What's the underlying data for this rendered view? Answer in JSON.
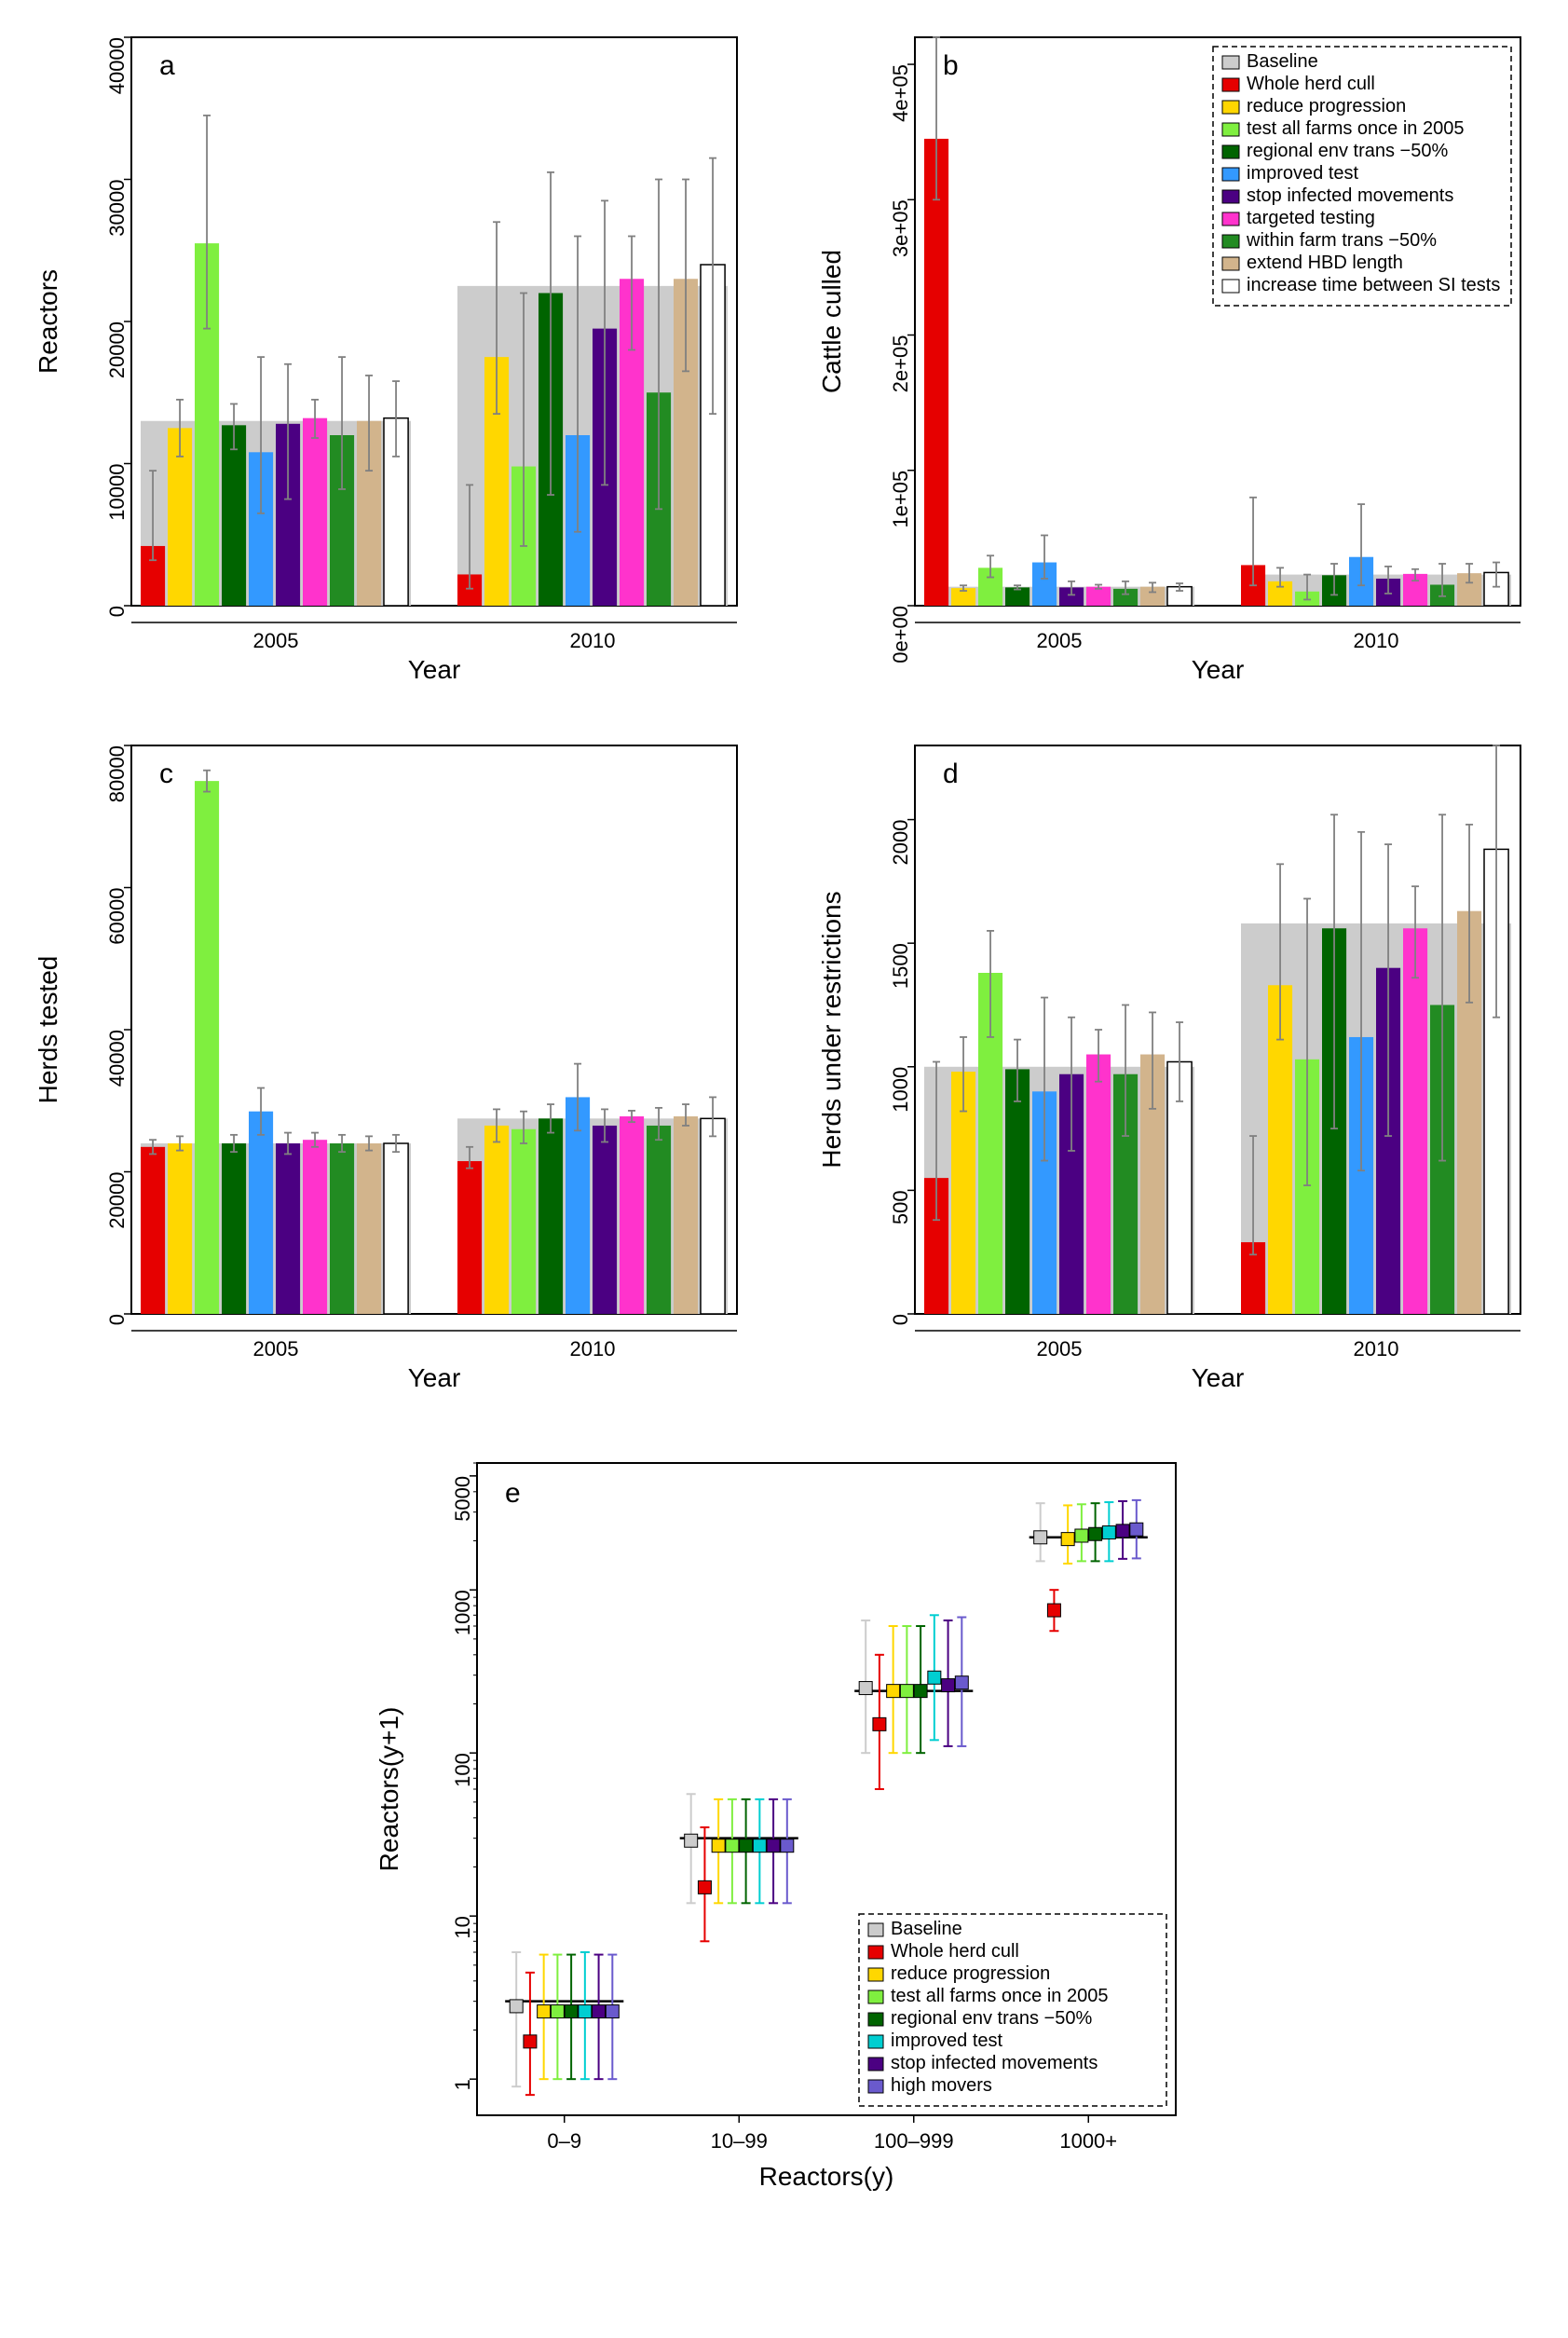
{
  "colors": {
    "baseline": "#cccccc",
    "whole_herd_cull": "#e60000",
    "reduce_progression": "#ffd700",
    "test_all_farms": "#7fef3f",
    "regional_env": "#006400",
    "improved_test": "#3399ff",
    "stop_infected": "#4b0082",
    "targeted_testing": "#ff33cc",
    "within_farm": "#228b22",
    "extend_hbd": "#d2b48c",
    "increase_si": "#ffffff",
    "high_movers": "#6a5acd",
    "improved_test_e": "#00ced1",
    "axis": "#000000",
    "err": "#808080"
  },
  "legend_main": [
    {
      "label": "Baseline",
      "key": "baseline"
    },
    {
      "label": "Whole herd cull",
      "key": "whole_herd_cull"
    },
    {
      "label": "reduce progression",
      "key": "reduce_progression"
    },
    {
      "label": "test all farms once in 2005",
      "key": "test_all_farms"
    },
    {
      "label": "regional env trans −50%",
      "key": "regional_env"
    },
    {
      "label": "improved test",
      "key": "improved_test"
    },
    {
      "label": "stop infected movements",
      "key": "stop_infected"
    },
    {
      "label": "targeted testing",
      "key": "targeted_testing"
    },
    {
      "label": "within farm trans −50%",
      "key": "within_farm"
    },
    {
      "label": "extend HBD length",
      "key": "extend_hbd"
    },
    {
      "label": "increase time between SI tests",
      "key": "increase_si"
    }
  ],
  "legend_e": [
    {
      "label": "Baseline",
      "key": "baseline"
    },
    {
      "label": "Whole herd cull",
      "key": "whole_herd_cull"
    },
    {
      "label": "reduce progression",
      "key": "reduce_progression"
    },
    {
      "label": "test all farms once in 2005",
      "key": "test_all_farms"
    },
    {
      "label": "regional env trans −50%",
      "key": "regional_env"
    },
    {
      "label": "improved test",
      "key": "improved_test_e"
    },
    {
      "label": "stop infected movements",
      "key": "stop_infected"
    },
    {
      "label": "high movers",
      "key": "high_movers"
    }
  ],
  "panels": {
    "a": {
      "letter": "a",
      "ylabel": "Reactors",
      "xlabel": "Year",
      "ylim": [
        0,
        40000
      ],
      "yticks": [
        0,
        10000,
        20000,
        30000,
        40000
      ],
      "ytick_labels": [
        "0",
        "10000",
        "20000",
        "30000",
        "40000"
      ],
      "groups": [
        "2005",
        "2010"
      ],
      "series_keys": [
        "whole_herd_cull",
        "reduce_progression",
        "test_all_farms",
        "regional_env",
        "improved_test",
        "stop_infected",
        "targeted_testing",
        "within_farm",
        "extend_hbd",
        "increase_si"
      ],
      "baseline": {
        "2005": 13000,
        "2010": 22500
      },
      "values": {
        "2005": {
          "whole_herd_cull": {
            "v": 4200,
            "lo": 3200,
            "hi": 9500
          },
          "reduce_progression": {
            "v": 12500,
            "lo": 10500,
            "hi": 14500
          },
          "test_all_farms": {
            "v": 25500,
            "lo": 19500,
            "hi": 34500
          },
          "regional_env": {
            "v": 12700,
            "lo": 11000,
            "hi": 14200
          },
          "improved_test": {
            "v": 10800,
            "lo": 6500,
            "hi": 17500
          },
          "stop_infected": {
            "v": 12800,
            "lo": 7500,
            "hi": 17000
          },
          "targeted_testing": {
            "v": 13200,
            "lo": 11800,
            "hi": 14500
          },
          "within_farm": {
            "v": 12000,
            "lo": 8200,
            "hi": 17500
          },
          "extend_hbd": {
            "v": 13000,
            "lo": 9500,
            "hi": 16200
          },
          "increase_si": {
            "v": 13200,
            "lo": 10500,
            "hi": 15800
          }
        },
        "2010": {
          "whole_herd_cull": {
            "v": 2200,
            "lo": 1200,
            "hi": 8500
          },
          "reduce_progression": {
            "v": 17500,
            "lo": 13500,
            "hi": 27000
          },
          "test_all_farms": {
            "v": 9800,
            "lo": 4200,
            "hi": 22000
          },
          "regional_env": {
            "v": 22000,
            "lo": 7800,
            "hi": 30500
          },
          "improved_test": {
            "v": 12000,
            "lo": 5200,
            "hi": 26000
          },
          "stop_infected": {
            "v": 19500,
            "lo": 8500,
            "hi": 28500
          },
          "targeted_testing": {
            "v": 23000,
            "lo": 18000,
            "hi": 26000
          },
          "within_farm": {
            "v": 15000,
            "lo": 6800,
            "hi": 30000
          },
          "extend_hbd": {
            "v": 23000,
            "lo": 16500,
            "hi": 30000
          },
          "increase_si": {
            "v": 24000,
            "lo": 13500,
            "hi": 31500
          }
        }
      }
    },
    "b": {
      "letter": "b",
      "ylabel": "Cattle culled",
      "xlabel": "Year",
      "ylim": [
        0,
        420000
      ],
      "yticks": [
        0,
        100000,
        200000,
        300000,
        400000
      ],
      "ytick_labels": [
        "0e+00",
        "1e+05",
        "2e+05",
        "3e+05",
        "4e+05"
      ],
      "groups": [
        "2005",
        "2010"
      ],
      "series_keys": [
        "whole_herd_cull",
        "reduce_progression",
        "test_all_farms",
        "regional_env",
        "improved_test",
        "stop_infected",
        "targeted_testing",
        "within_farm",
        "extend_hbd",
        "increase_si"
      ],
      "baseline": {
        "2005": 14000,
        "2010": 23000
      },
      "values": {
        "2005": {
          "whole_herd_cull": {
            "v": 345000,
            "lo": 300000,
            "hi": 420000
          },
          "reduce_progression": {
            "v": 13000,
            "lo": 11000,
            "hi": 15000
          },
          "test_all_farms": {
            "v": 28000,
            "lo": 21000,
            "hi": 37000
          },
          "regional_env": {
            "v": 13500,
            "lo": 12000,
            "hi": 15000
          },
          "improved_test": {
            "v": 32000,
            "lo": 20000,
            "hi": 52000
          },
          "stop_infected": {
            "v": 13500,
            "lo": 8000,
            "hi": 18000
          },
          "targeted_testing": {
            "v": 14000,
            "lo": 12500,
            "hi": 15500
          },
          "within_farm": {
            "v": 12500,
            "lo": 8500,
            "hi": 18000
          },
          "extend_hbd": {
            "v": 14000,
            "lo": 10000,
            "hi": 17000
          },
          "increase_si": {
            "v": 14000,
            "lo": 11000,
            "hi": 16500
          }
        },
        "2010": {
          "whole_herd_cull": {
            "v": 30000,
            "lo": 15000,
            "hi": 80000
          },
          "reduce_progression": {
            "v": 18000,
            "lo": 14000,
            "hi": 28000
          },
          "test_all_farms": {
            "v": 10500,
            "lo": 4500,
            "hi": 23000
          },
          "regional_env": {
            "v": 22500,
            "lo": 8000,
            "hi": 31000
          },
          "improved_test": {
            "v": 36000,
            "lo": 15000,
            "hi": 75000
          },
          "stop_infected": {
            "v": 20000,
            "lo": 9000,
            "hi": 29000
          },
          "targeted_testing": {
            "v": 23500,
            "lo": 18500,
            "hi": 27000
          },
          "within_farm": {
            "v": 15500,
            "lo": 7000,
            "hi": 31000
          },
          "extend_hbd": {
            "v": 24000,
            "lo": 17000,
            "hi": 31000
          },
          "increase_si": {
            "v": 24500,
            "lo": 14000,
            "hi": 32000
          }
        }
      }
    },
    "c": {
      "letter": "c",
      "ylabel": "Herds tested",
      "xlabel": "Year",
      "ylim": [
        0,
        80000
      ],
      "yticks": [
        0,
        20000,
        40000,
        60000,
        80000
      ],
      "ytick_labels": [
        "0",
        "20000",
        "40000",
        "60000",
        "80000"
      ],
      "groups": [
        "2005",
        "2010"
      ],
      "series_keys": [
        "whole_herd_cull",
        "reduce_progression",
        "test_all_farms",
        "regional_env",
        "improved_test",
        "stop_infected",
        "targeted_testing",
        "within_farm",
        "extend_hbd",
        "increase_si"
      ],
      "baseline": {
        "2005": 24000,
        "2010": 27500
      },
      "values": {
        "2005": {
          "whole_herd_cull": {
            "v": 23500,
            "lo": 22500,
            "hi": 24500
          },
          "reduce_progression": {
            "v": 24000,
            "lo": 23000,
            "hi": 25000
          },
          "test_all_farms": {
            "v": 75000,
            "lo": 73500,
            "hi": 76500
          },
          "regional_env": {
            "v": 24000,
            "lo": 22800,
            "hi": 25200
          },
          "improved_test": {
            "v": 28500,
            "lo": 25200,
            "hi": 31800
          },
          "stop_infected": {
            "v": 24000,
            "lo": 22500,
            "hi": 25500
          },
          "targeted_testing": {
            "v": 24500,
            "lo": 23500,
            "hi": 25500
          },
          "within_farm": {
            "v": 24000,
            "lo": 22800,
            "hi": 25200
          },
          "extend_hbd": {
            "v": 24000,
            "lo": 23000,
            "hi": 25000
          },
          "increase_si": {
            "v": 24000,
            "lo": 22800,
            "hi": 25200
          }
        },
        "2010": {
          "whole_herd_cull": {
            "v": 21500,
            "lo": 20500,
            "hi": 23500
          },
          "reduce_progression": {
            "v": 26500,
            "lo": 24200,
            "hi": 28800
          },
          "test_all_farms": {
            "v": 26000,
            "lo": 24000,
            "hi": 28500
          },
          "regional_env": {
            "v": 27500,
            "lo": 25500,
            "hi": 29500
          },
          "improved_test": {
            "v": 30500,
            "lo": 25800,
            "hi": 35200
          },
          "stop_infected": {
            "v": 26500,
            "lo": 24200,
            "hi": 28800
          },
          "targeted_testing": {
            "v": 27800,
            "lo": 27000,
            "hi": 28600
          },
          "within_farm": {
            "v": 26500,
            "lo": 24500,
            "hi": 29000
          },
          "extend_hbd": {
            "v": 27800,
            "lo": 26500,
            "hi": 29500
          },
          "increase_si": {
            "v": 27500,
            "lo": 25000,
            "hi": 30500
          }
        }
      }
    },
    "d": {
      "letter": "d",
      "ylabel": "Herds under restrictions",
      "xlabel": "Year",
      "ylim": [
        0,
        2300
      ],
      "yticks": [
        0,
        500,
        1000,
        1500,
        2000
      ],
      "ytick_labels": [
        "0",
        "500",
        "1000",
        "1500",
        "2000"
      ],
      "groups": [
        "2005",
        "2010"
      ],
      "series_keys": [
        "whole_herd_cull",
        "reduce_progression",
        "test_all_farms",
        "regional_env",
        "improved_test",
        "stop_infected",
        "targeted_testing",
        "within_farm",
        "extend_hbd",
        "increase_si"
      ],
      "baseline": {
        "2005": 1000,
        "2010": 1580
      },
      "values": {
        "2005": {
          "whole_herd_cull": {
            "v": 550,
            "lo": 380,
            "hi": 1020
          },
          "reduce_progression": {
            "v": 980,
            "lo": 820,
            "hi": 1120
          },
          "test_all_farms": {
            "v": 1380,
            "lo": 1120,
            "hi": 1550
          },
          "regional_env": {
            "v": 990,
            "lo": 860,
            "hi": 1110
          },
          "improved_test": {
            "v": 900,
            "lo": 620,
            "hi": 1280
          },
          "stop_infected": {
            "v": 970,
            "lo": 660,
            "hi": 1200
          },
          "targeted_testing": {
            "v": 1050,
            "lo": 940,
            "hi": 1150
          },
          "within_farm": {
            "v": 970,
            "lo": 720,
            "hi": 1250
          },
          "extend_hbd": {
            "v": 1050,
            "lo": 830,
            "hi": 1220
          },
          "increase_si": {
            "v": 1020,
            "lo": 860,
            "hi": 1180
          }
        },
        "2010": {
          "whole_herd_cull": {
            "v": 290,
            "lo": 240,
            "hi": 720
          },
          "reduce_progression": {
            "v": 1330,
            "lo": 1110,
            "hi": 1820
          },
          "test_all_farms": {
            "v": 1030,
            "lo": 520,
            "hi": 1680
          },
          "regional_env": {
            "v": 1560,
            "lo": 750,
            "hi": 2020
          },
          "improved_test": {
            "v": 1120,
            "lo": 580,
            "hi": 1950
          },
          "stop_infected": {
            "v": 1400,
            "lo": 720,
            "hi": 1900
          },
          "targeted_testing": {
            "v": 1560,
            "lo": 1360,
            "hi": 1730
          },
          "within_farm": {
            "v": 1250,
            "lo": 620,
            "hi": 2020
          },
          "extend_hbd": {
            "v": 1630,
            "lo": 1260,
            "hi": 1980
          },
          "increase_si": {
            "v": 1880,
            "lo": 1200,
            "hi": 2300
          }
        }
      }
    }
  },
  "panel_e": {
    "letter": "e",
    "xlabel": "Reactors(y)",
    "ylabel": "Reactors(y+1)",
    "x_categories": [
      "0–9",
      "10–99",
      "100–999",
      "1000+"
    ],
    "log_ticks": [
      1,
      10,
      100,
      1000,
      5000
    ],
    "log_tick_labels": [
      "1",
      "10",
      "100",
      "1000",
      "5000"
    ],
    "ylim_log": [
      0.6,
      6000
    ],
    "series_keys": [
      "baseline",
      "whole_herd_cull",
      "reduce_progression",
      "test_all_farms",
      "regional_env",
      "improved_test_e",
      "stop_infected",
      "high_movers"
    ],
    "baseline_line": {
      "0–9": 3,
      "10–99": 30,
      "100–999": 240,
      "1000+": 2100
    },
    "values": {
      "0–9": {
        "baseline": {
          "v": 2.8,
          "lo": 0.9,
          "hi": 6
        },
        "whole_herd_cull": {
          "v": 1.7,
          "lo": 0.8,
          "hi": 4.5
        },
        "reduce_progression": {
          "v": 2.6,
          "lo": 1,
          "hi": 5.8
        },
        "test_all_farms": {
          "v": 2.6,
          "lo": 1,
          "hi": 5.8
        },
        "regional_env": {
          "v": 2.6,
          "lo": 1,
          "hi": 5.8
        },
        "improved_test_e": {
          "v": 2.6,
          "lo": 1,
          "hi": 6
        },
        "stop_infected": {
          "v": 2.6,
          "lo": 1,
          "hi": 5.8
        },
        "high_movers": {
          "v": 2.6,
          "lo": 1,
          "hi": 5.8
        }
      },
      "10–99": {
        "baseline": {
          "v": 29,
          "lo": 12,
          "hi": 56
        },
        "whole_herd_cull": {
          "v": 15,
          "lo": 7,
          "hi": 35
        },
        "reduce_progression": {
          "v": 27,
          "lo": 12,
          "hi": 52
        },
        "test_all_farms": {
          "v": 27,
          "lo": 12,
          "hi": 52
        },
        "regional_env": {
          "v": 27,
          "lo": 12,
          "hi": 52
        },
        "improved_test_e": {
          "v": 27,
          "lo": 12,
          "hi": 52
        },
        "stop_infected": {
          "v": 27,
          "lo": 12,
          "hi": 52
        },
        "high_movers": {
          "v": 27,
          "lo": 12,
          "hi": 52
        }
      },
      "100–999": {
        "baseline": {
          "v": 250,
          "lo": 100,
          "hi": 650
        },
        "whole_herd_cull": {
          "v": 150,
          "lo": 60,
          "hi": 400
        },
        "reduce_progression": {
          "v": 240,
          "lo": 100,
          "hi": 600
        },
        "test_all_farms": {
          "v": 240,
          "lo": 100,
          "hi": 600
        },
        "regional_env": {
          "v": 240,
          "lo": 100,
          "hi": 600
        },
        "improved_test_e": {
          "v": 290,
          "lo": 120,
          "hi": 700
        },
        "stop_infected": {
          "v": 260,
          "lo": 110,
          "hi": 650
        },
        "high_movers": {
          "v": 270,
          "lo": 110,
          "hi": 680
        }
      },
      "1000+": {
        "baseline": {
          "v": 2100,
          "lo": 1500,
          "hi": 3400
        },
        "whole_herd_cull": {
          "v": 750,
          "lo": 560,
          "hi": 1000
        },
        "reduce_progression": {
          "v": 2050,
          "lo": 1450,
          "hi": 3300
        },
        "test_all_farms": {
          "v": 2150,
          "lo": 1500,
          "hi": 3350
        },
        "regional_env": {
          "v": 2200,
          "lo": 1500,
          "hi": 3400
        },
        "improved_test_e": {
          "v": 2250,
          "lo": 1500,
          "hi": 3450
        },
        "stop_infected": {
          "v": 2300,
          "lo": 1550,
          "hi": 3500
        },
        "high_movers": {
          "v": 2350,
          "lo": 1560,
          "hi": 3550
        }
      }
    }
  },
  "fontsize": {
    "axis_label": 28,
    "tick": 22,
    "panel_letter": 30,
    "legend": 20
  }
}
